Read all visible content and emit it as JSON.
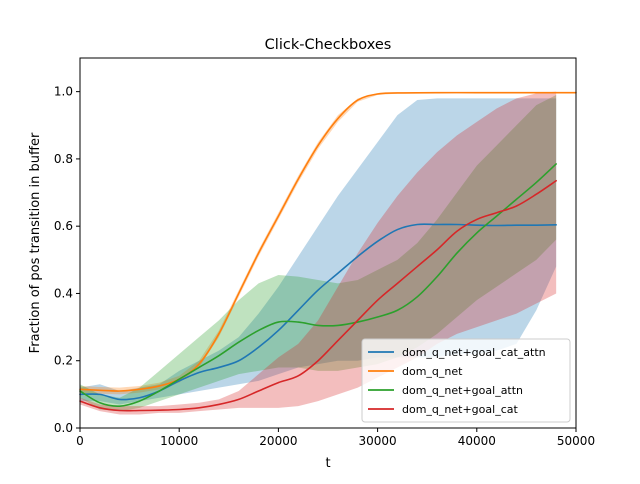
{
  "chart_data": {
    "type": "line",
    "title": "Click-Checkboxes",
    "xlabel": "t",
    "ylabel": "Fraction of pos transition in buffer",
    "xlim": [
      0,
      50000
    ],
    "ylim": [
      0,
      1.1
    ],
    "xticks": [
      0,
      10000,
      20000,
      30000,
      40000,
      50000
    ],
    "xtick_labels": [
      "0",
      "10000",
      "20000",
      "30000",
      "40000",
      "50000"
    ],
    "yticks": [
      0.0,
      0.2,
      0.4,
      0.6,
      0.8,
      1.0
    ],
    "ytick_labels": [
      "0.0",
      "0.2",
      "0.4",
      "0.6",
      "0.8",
      "1.0"
    ],
    "grid": false,
    "legend_position": "lower-right",
    "series": [
      {
        "name": "dom_q_net+goal_cat_attn",
        "color": "#1f77b4",
        "points": [
          [
            0,
            0.1
          ],
          [
            2000,
            0.1
          ],
          [
            4000,
            0.085
          ],
          [
            6000,
            0.09
          ],
          [
            8000,
            0.11
          ],
          [
            10000,
            0.14
          ],
          [
            12000,
            0.165
          ],
          [
            14000,
            0.18
          ],
          [
            16000,
            0.2
          ],
          [
            18000,
            0.24
          ],
          [
            20000,
            0.29
          ],
          [
            22000,
            0.35
          ],
          [
            24000,
            0.41
          ],
          [
            26000,
            0.46
          ],
          [
            28000,
            0.51
          ],
          [
            30000,
            0.555
          ],
          [
            32000,
            0.59
          ],
          [
            34000,
            0.605
          ],
          [
            36000,
            0.605
          ],
          [
            38000,
            0.605
          ],
          [
            40000,
            0.603
          ],
          [
            42000,
            0.602
          ],
          [
            44000,
            0.603
          ],
          [
            46000,
            0.603
          ],
          [
            48000,
            0.604
          ]
        ],
        "band_lower": [
          [
            0,
            0.08
          ],
          [
            2000,
            0.08
          ],
          [
            4000,
            0.07
          ],
          [
            6000,
            0.08
          ],
          [
            8000,
            0.09
          ],
          [
            10000,
            0.1
          ],
          [
            12000,
            0.11
          ],
          [
            14000,
            0.12
          ],
          [
            16000,
            0.13
          ],
          [
            18000,
            0.14
          ],
          [
            20000,
            0.16
          ],
          [
            22000,
            0.18
          ],
          [
            24000,
            0.19
          ],
          [
            26000,
            0.2
          ],
          [
            28000,
            0.2
          ],
          [
            30000,
            0.21
          ],
          [
            32000,
            0.21
          ],
          [
            34000,
            0.21
          ],
          [
            36000,
            0.21
          ],
          [
            38000,
            0.22
          ],
          [
            40000,
            0.22
          ],
          [
            42000,
            0.23
          ],
          [
            44000,
            0.25
          ],
          [
            46000,
            0.35
          ],
          [
            48000,
            0.48
          ]
        ],
        "band_upper": [
          [
            0,
            0.12
          ],
          [
            2000,
            0.13
          ],
          [
            4000,
            0.11
          ],
          [
            6000,
            0.12
          ],
          [
            8000,
            0.13
          ],
          [
            10000,
            0.17
          ],
          [
            12000,
            0.2
          ],
          [
            14000,
            0.23
          ],
          [
            16000,
            0.27
          ],
          [
            18000,
            0.34
          ],
          [
            20000,
            0.42
          ],
          [
            22000,
            0.51
          ],
          [
            24000,
            0.6
          ],
          [
            26000,
            0.69
          ],
          [
            28000,
            0.77
          ],
          [
            30000,
            0.85
          ],
          [
            32000,
            0.93
          ],
          [
            34000,
            0.975
          ],
          [
            36000,
            0.98
          ],
          [
            38000,
            0.98
          ],
          [
            40000,
            0.98
          ],
          [
            42000,
            0.98
          ],
          [
            44000,
            0.98
          ],
          [
            46000,
            0.98
          ],
          [
            48000,
            0.98
          ]
        ]
      },
      {
        "name": "dom_q_net",
        "color": "#ff7f0e",
        "points": [
          [
            0,
            0.115
          ],
          [
            2000,
            0.112
          ],
          [
            4000,
            0.11
          ],
          [
            6000,
            0.115
          ],
          [
            8000,
            0.125
          ],
          [
            10000,
            0.145
          ],
          [
            12000,
            0.19
          ],
          [
            14000,
            0.28
          ],
          [
            16000,
            0.4
          ],
          [
            18000,
            0.52
          ],
          [
            20000,
            0.63
          ],
          [
            22000,
            0.74
          ],
          [
            24000,
            0.84
          ],
          [
            26000,
            0.92
          ],
          [
            28000,
            0.975
          ],
          [
            30000,
            0.993
          ],
          [
            32000,
            0.996
          ],
          [
            36000,
            0.997
          ],
          [
            40000,
            0.997
          ],
          [
            44000,
            0.997
          ],
          [
            48000,
            0.997
          ],
          [
            50000,
            0.997
          ]
        ],
        "band_lower": [
          [
            0,
            0.105
          ],
          [
            2000,
            0.102
          ],
          [
            4000,
            0.1
          ],
          [
            6000,
            0.105
          ],
          [
            8000,
            0.115
          ],
          [
            10000,
            0.135
          ],
          [
            12000,
            0.18
          ],
          [
            14000,
            0.27
          ],
          [
            16000,
            0.39
          ],
          [
            18000,
            0.51
          ],
          [
            20000,
            0.62
          ],
          [
            22000,
            0.73
          ],
          [
            24000,
            0.83
          ],
          [
            26000,
            0.91
          ],
          [
            28000,
            0.97
          ],
          [
            30000,
            0.99
          ],
          [
            32000,
            0.994
          ],
          [
            36000,
            0.995
          ],
          [
            40000,
            0.995
          ],
          [
            44000,
            0.995
          ],
          [
            48000,
            0.995
          ],
          [
            50000,
            0.995
          ]
        ],
        "band_upper": [
          [
            0,
            0.125
          ],
          [
            2000,
            0.122
          ],
          [
            4000,
            0.12
          ],
          [
            6000,
            0.125
          ],
          [
            8000,
            0.135
          ],
          [
            10000,
            0.155
          ],
          [
            12000,
            0.2
          ],
          [
            14000,
            0.29
          ],
          [
            16000,
            0.41
          ],
          [
            18000,
            0.53
          ],
          [
            20000,
            0.64
          ],
          [
            22000,
            0.75
          ],
          [
            24000,
            0.85
          ],
          [
            26000,
            0.93
          ],
          [
            28000,
            0.98
          ],
          [
            30000,
            0.996
          ],
          [
            32000,
            0.998
          ],
          [
            36000,
            0.999
          ],
          [
            40000,
            0.999
          ],
          [
            44000,
            0.999
          ],
          [
            48000,
            0.999
          ],
          [
            50000,
            0.999
          ]
        ]
      },
      {
        "name": "dom_q_net+goal_attn",
        "color": "#2ca02c",
        "points": [
          [
            0,
            0.11
          ],
          [
            2000,
            0.075
          ],
          [
            4000,
            0.065
          ],
          [
            6000,
            0.08
          ],
          [
            8000,
            0.11
          ],
          [
            10000,
            0.145
          ],
          [
            12000,
            0.18
          ],
          [
            14000,
            0.215
          ],
          [
            16000,
            0.255
          ],
          [
            18000,
            0.29
          ],
          [
            20000,
            0.315
          ],
          [
            22000,
            0.315
          ],
          [
            24000,
            0.305
          ],
          [
            26000,
            0.305
          ],
          [
            28000,
            0.315
          ],
          [
            30000,
            0.33
          ],
          [
            32000,
            0.35
          ],
          [
            34000,
            0.39
          ],
          [
            36000,
            0.45
          ],
          [
            38000,
            0.52
          ],
          [
            40000,
            0.58
          ],
          [
            42000,
            0.63
          ],
          [
            44000,
            0.68
          ],
          [
            46000,
            0.73
          ],
          [
            48000,
            0.785
          ]
        ],
        "band_lower": [
          [
            0,
            0.09
          ],
          [
            2000,
            0.055
          ],
          [
            4000,
            0.05
          ],
          [
            6000,
            0.06
          ],
          [
            8000,
            0.08
          ],
          [
            10000,
            0.1
          ],
          [
            12000,
            0.12
          ],
          [
            14000,
            0.14
          ],
          [
            16000,
            0.16
          ],
          [
            18000,
            0.17
          ],
          [
            20000,
            0.18
          ],
          [
            22000,
            0.18
          ],
          [
            24000,
            0.17
          ],
          [
            26000,
            0.17
          ],
          [
            28000,
            0.18
          ],
          [
            30000,
            0.19
          ],
          [
            32000,
            0.21
          ],
          [
            34000,
            0.24
          ],
          [
            36000,
            0.28
          ],
          [
            38000,
            0.33
          ],
          [
            40000,
            0.38
          ],
          [
            42000,
            0.42
          ],
          [
            44000,
            0.46
          ],
          [
            46000,
            0.5
          ],
          [
            48000,
            0.56
          ]
        ],
        "band_upper": [
          [
            0,
            0.13
          ],
          [
            2000,
            0.1
          ],
          [
            4000,
            0.09
          ],
          [
            6000,
            0.12
          ],
          [
            8000,
            0.17
          ],
          [
            10000,
            0.22
          ],
          [
            12000,
            0.27
          ],
          [
            14000,
            0.32
          ],
          [
            16000,
            0.38
          ],
          [
            18000,
            0.43
          ],
          [
            20000,
            0.455
          ],
          [
            22000,
            0.45
          ],
          [
            24000,
            0.44
          ],
          [
            26000,
            0.43
          ],
          [
            28000,
            0.44
          ],
          [
            30000,
            0.47
          ],
          [
            32000,
            0.5
          ],
          [
            34000,
            0.55
          ],
          [
            36000,
            0.62
          ],
          [
            38000,
            0.7
          ],
          [
            40000,
            0.78
          ],
          [
            42000,
            0.84
          ],
          [
            44000,
            0.9
          ],
          [
            46000,
            0.96
          ],
          [
            48000,
            0.99
          ]
        ]
      },
      {
        "name": "dom_q_net+goal_cat",
        "color": "#d62728",
        "points": [
          [
            0,
            0.08
          ],
          [
            2000,
            0.06
          ],
          [
            4000,
            0.052
          ],
          [
            6000,
            0.052
          ],
          [
            8000,
            0.053
          ],
          [
            10000,
            0.055
          ],
          [
            12000,
            0.06
          ],
          [
            14000,
            0.07
          ],
          [
            16000,
            0.085
          ],
          [
            18000,
            0.11
          ],
          [
            20000,
            0.135
          ],
          [
            22000,
            0.155
          ],
          [
            24000,
            0.2
          ],
          [
            26000,
            0.26
          ],
          [
            28000,
            0.32
          ],
          [
            30000,
            0.38
          ],
          [
            32000,
            0.43
          ],
          [
            34000,
            0.48
          ],
          [
            36000,
            0.53
          ],
          [
            38000,
            0.585
          ],
          [
            40000,
            0.62
          ],
          [
            42000,
            0.64
          ],
          [
            44000,
            0.66
          ],
          [
            46000,
            0.695
          ],
          [
            48000,
            0.735
          ]
        ],
        "band_lower": [
          [
            0,
            0.07
          ],
          [
            2000,
            0.05
          ],
          [
            4000,
            0.04
          ],
          [
            6000,
            0.04
          ],
          [
            8000,
            0.045
          ],
          [
            10000,
            0.045
          ],
          [
            12000,
            0.05
          ],
          [
            14000,
            0.055
          ],
          [
            16000,
            0.06
          ],
          [
            18000,
            0.06
          ],
          [
            20000,
            0.06
          ],
          [
            22000,
            0.065
          ],
          [
            24000,
            0.08
          ],
          [
            26000,
            0.1
          ],
          [
            28000,
            0.12
          ],
          [
            30000,
            0.15
          ],
          [
            32000,
            0.18
          ],
          [
            34000,
            0.21
          ],
          [
            36000,
            0.25
          ],
          [
            38000,
            0.28
          ],
          [
            40000,
            0.3
          ],
          [
            42000,
            0.32
          ],
          [
            44000,
            0.34
          ],
          [
            46000,
            0.37
          ],
          [
            48000,
            0.4
          ]
        ],
        "band_upper": [
          [
            0,
            0.09
          ],
          [
            2000,
            0.07
          ],
          [
            4000,
            0.065
          ],
          [
            6000,
            0.065
          ],
          [
            8000,
            0.065
          ],
          [
            10000,
            0.07
          ],
          [
            12000,
            0.075
          ],
          [
            14000,
            0.085
          ],
          [
            16000,
            0.11
          ],
          [
            18000,
            0.16
          ],
          [
            20000,
            0.21
          ],
          [
            22000,
            0.25
          ],
          [
            24000,
            0.32
          ],
          [
            26000,
            0.42
          ],
          [
            28000,
            0.52
          ],
          [
            30000,
            0.61
          ],
          [
            32000,
            0.69
          ],
          [
            34000,
            0.76
          ],
          [
            36000,
            0.82
          ],
          [
            38000,
            0.87
          ],
          [
            40000,
            0.91
          ],
          [
            42000,
            0.95
          ],
          [
            44000,
            0.98
          ],
          [
            46000,
            0.995
          ],
          [
            48000,
            1.0
          ]
        ]
      }
    ]
  }
}
